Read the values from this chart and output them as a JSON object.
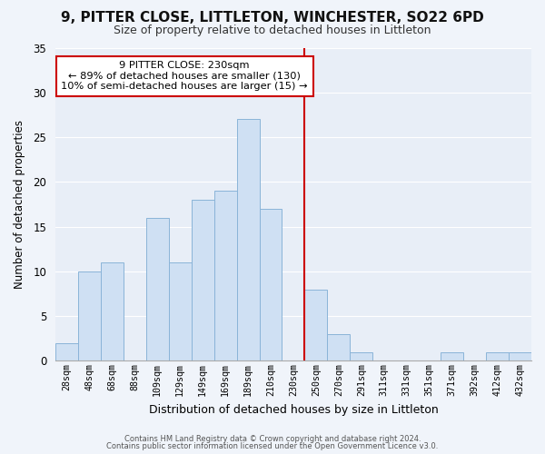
{
  "title": "9, PITTER CLOSE, LITTLETON, WINCHESTER, SO22 6PD",
  "subtitle": "Size of property relative to detached houses in Littleton",
  "xlabel": "Distribution of detached houses by size in Littleton",
  "ylabel": "Number of detached properties",
  "bar_labels": [
    "28sqm",
    "48sqm",
    "68sqm",
    "88sqm",
    "109sqm",
    "129sqm",
    "149sqm",
    "169sqm",
    "189sqm",
    "210sqm",
    "230sqm",
    "250sqm",
    "270sqm",
    "291sqm",
    "311sqm",
    "331sqm",
    "351sqm",
    "371sqm",
    "392sqm",
    "412sqm",
    "432sqm"
  ],
  "bar_values": [
    2,
    10,
    11,
    0,
    16,
    11,
    18,
    19,
    27,
    17,
    0,
    8,
    3,
    1,
    0,
    0,
    0,
    1,
    0,
    1,
    1
  ],
  "bar_color": "#cfe0f3",
  "bar_edge_color": "#8ab4d8",
  "vline_x_index": 10,
  "vline_color": "#cc0000",
  "annotation_title": "9 PITTER CLOSE: 230sqm",
  "annotation_line1": "← 89% of detached houses are smaller (130)",
  "annotation_line2": "10% of semi-detached houses are larger (15) →",
  "annotation_box_color": "#ffffff",
  "annotation_border_color": "#cc0000",
  "ylim": [
    0,
    35
  ],
  "yticks": [
    0,
    5,
    10,
    15,
    20,
    25,
    30,
    35
  ],
  "footer1": "Contains HM Land Registry data © Crown copyright and database right 2024.",
  "footer2": "Contains public sector information licensed under the Open Government Licence v3.0.",
  "background_color": "#f0f4fa",
  "plot_bg_color": "#e8eef7",
  "grid_color": "#ffffff"
}
